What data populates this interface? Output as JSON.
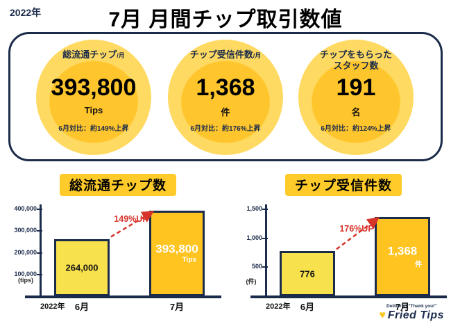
{
  "header": {
    "year": "2022年",
    "title": "7月 月間チップ取引数値"
  },
  "stats": [
    {
      "label": "総流通チップ",
      "label_suffix": "/月",
      "value": "393,800",
      "unit": "Tips",
      "comparison": "6月対比：約149%上昇"
    },
    {
      "label": "チップ受信件数",
      "label_suffix": "/月",
      "value": "1,368",
      "unit": "件",
      "comparison": "6月対比：約176%上昇"
    },
    {
      "label": "チップをもらった\nスタッフ数",
      "label_suffix": "",
      "value": "191",
      "unit": "名",
      "comparison": "6月対比：約124%上昇"
    }
  ],
  "chart_data": [
    {
      "type": "bar",
      "title": "総流通チップ数",
      "x_prefix": "2022年",
      "categories": [
        "6月",
        "7月"
      ],
      "values": [
        264000,
        393800
      ],
      "bar_labels": [
        "264,000",
        "393,800"
      ],
      "bar_units": [
        "",
        "Tips"
      ],
      "annotation": "149%UP",
      "xlabel": "",
      "ylabel": "(tips)",
      "ylim": [
        0,
        400000
      ],
      "yticks": [
        100000,
        200000,
        300000,
        400000
      ],
      "ytick_labels": [
        "100,000",
        "200,000",
        "300,000",
        "400,000"
      ],
      "legend": "none",
      "grid": false
    },
    {
      "type": "bar",
      "title": "チップ受信件数",
      "x_prefix": "2022年",
      "categories": [
        "6月",
        "7月"
      ],
      "values": [
        776,
        1368
      ],
      "bar_labels": [
        "776",
        "1,368"
      ],
      "bar_units": [
        "",
        "件"
      ],
      "annotation": "176%UP",
      "xlabel": "",
      "ylabel": "(件)",
      "ylim": [
        0,
        1500
      ],
      "yticks": [
        500,
        1000,
        1500
      ],
      "ytick_labels": [
        "500",
        "1,000",
        "1,500"
      ],
      "legend": "none",
      "grid": false
    }
  ],
  "footer": {
    "tagline": "Deliver of \"Thank you!\"",
    "logo": "Fried Tips"
  },
  "colors": {
    "navy": "#1B2B4A",
    "gold": "#FFC420",
    "light_yellow": "#F7E14D",
    "circle_outer": "#FFDA62",
    "circle_inner": "#FFC52C",
    "title_highlight": "#FFCB2B",
    "red": "#D7342A"
  }
}
